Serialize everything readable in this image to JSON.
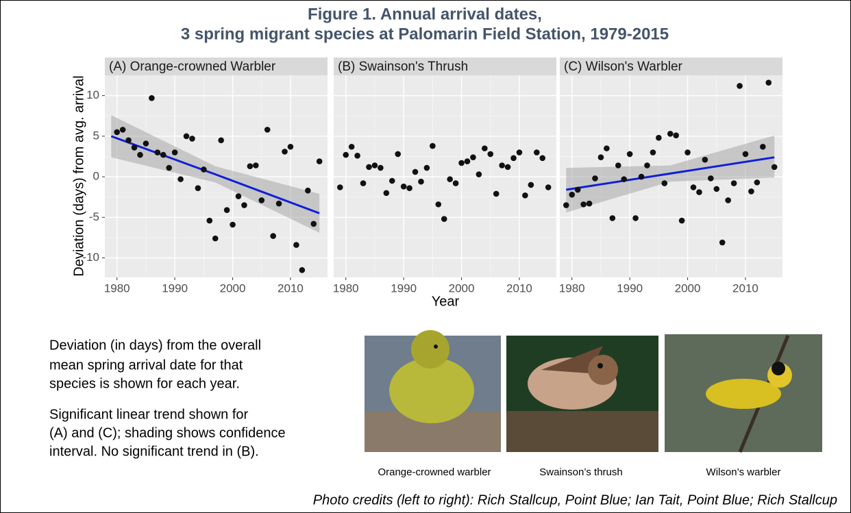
{
  "figure": {
    "title": [
      "Figure 1. Annual arrival dates,",
      "3 spring migrant species at Palomarin Field Station, 1979-2015"
    ],
    "xlabel": "Year",
    "ylabel": "Deviation (days) from avg. arrival"
  },
  "chart_data": [
    {
      "type": "scatter",
      "title": "(A) Orange-crowned Warbler",
      "color": "#111111",
      "x": [
        1980,
        1981,
        1982,
        1983,
        1984,
        1985,
        1986,
        1987,
        1988,
        1989,
        1990,
        1991,
        1992,
        1993,
        1994,
        1995,
        1996,
        1997,
        1998,
        1999,
        2000,
        2001,
        2002,
        2003,
        2004,
        2005,
        2006,
        2007,
        2008,
        2009,
        2010,
        2011,
        2012,
        2013,
        2014,
        2015
      ],
      "values": [
        5.5,
        5.8,
        4.5,
        3.6,
        2.7,
        4.1,
        9.7,
        3.0,
        2.7,
        1.1,
        3.0,
        -0.3,
        5.0,
        4.7,
        -1.4,
        0.9,
        -5.4,
        -7.6,
        4.5,
        -4.1,
        -5.9,
        -2.4,
        -3.5,
        1.3,
        1.4,
        -2.9,
        5.8,
        -7.3,
        -3.3,
        3.1,
        3.7,
        -8.4,
        -11.5,
        -1.7,
        -5.8,
        1.9
      ],
      "trend": {
        "x": [
          1979,
          1997,
          2015
        ],
        "values": [
          5.0,
          0.3,
          -4.5
        ],
        "lower": [
          2.4,
          -0.7,
          -6.9
        ],
        "upper": [
          7.6,
          1.3,
          -2.1
        ],
        "color": "#0f1fd6"
      },
      "xlim": [
        1977.9,
        2016.4
      ],
      "ylim": [
        -12.4,
        12.5
      ],
      "xticks": [
        1980,
        1990,
        2000,
        2010
      ],
      "yticks": [
        -10,
        -5,
        0,
        5,
        10
      ],
      "grid": true
    },
    {
      "type": "scatter",
      "title": "(B) Swainson's Thrush",
      "color": "#111111",
      "x": [
        1979,
        1980,
        1981,
        1982,
        1983,
        1984,
        1985,
        1986,
        1987,
        1988,
        1989,
        1990,
        1991,
        1992,
        1993,
        1994,
        1995,
        1996,
        1997,
        1998,
        1999,
        2000,
        2001,
        2002,
        2003,
        2004,
        2005,
        2006,
        2007,
        2008,
        2009,
        2010,
        2011,
        2012,
        2013,
        2014,
        2015
      ],
      "values": [
        -1.3,
        2.7,
        3.7,
        2.6,
        -0.8,
        1.2,
        1.4,
        1.1,
        -2.0,
        -0.5,
        2.8,
        -1.2,
        -1.4,
        0.6,
        -0.6,
        1.1,
        3.8,
        -3.4,
        -5.2,
        -0.3,
        -0.8,
        1.7,
        1.9,
        2.4,
        0.3,
        3.5,
        2.8,
        -2.1,
        1.4,
        1.2,
        2.3,
        3.0,
        -2.3,
        -1.0,
        3.0,
        2.3,
        -1.3
      ],
      "xlim": [
        1977.9,
        2016.4
      ],
      "ylim": [
        -12.4,
        12.5
      ],
      "xticks": [
        1980,
        1990,
        2000,
        2010
      ],
      "yticks": [
        -10,
        -5,
        0,
        5,
        10
      ],
      "grid": true
    },
    {
      "type": "scatter",
      "title": "(C) Wilson's Warbler",
      "color": "#111111",
      "x": [
        1979,
        1980,
        1981,
        1982,
        1983,
        1984,
        1985,
        1986,
        1987,
        1988,
        1989,
        1990,
        1991,
        1992,
        1993,
        1994,
        1995,
        1996,
        1997,
        1998,
        1999,
        2000,
        2001,
        2002,
        2003,
        2004,
        2005,
        2006,
        2007,
        2008,
        2009,
        2010,
        2011,
        2012,
        2013,
        2014,
        2015
      ],
      "values": [
        -3.5,
        -2.2,
        -1.6,
        -3.4,
        -3.3,
        -0.2,
        2.4,
        3.5,
        -5.1,
        1.4,
        -0.3,
        2.8,
        -5.1,
        0.0,
        1.4,
        3.0,
        4.8,
        -0.8,
        5.3,
        5.1,
        -5.4,
        3.0,
        -1.3,
        -1.9,
        2.1,
        -0.2,
        -1.5,
        -8.1,
        -2.9,
        -0.8,
        11.2,
        2.8,
        -1.8,
        -0.7,
        3.7,
        11.6,
        1.2
      ],
      "trend": {
        "x": [
          1979,
          1997,
          2015
        ],
        "values": [
          -1.6,
          0.4,
          2.4
        ],
        "lower": [
          -4.4,
          -0.6,
          -0.1
        ],
        "upper": [
          1.1,
          1.4,
          5.1
        ],
        "color": "#0f1fd6"
      },
      "xlim": [
        1977.9,
        2016.4
      ],
      "ylim": [
        -12.4,
        12.5
      ],
      "xticks": [
        1980,
        1990,
        2000,
        2010
      ],
      "yticks": [
        -10,
        -5,
        0,
        5,
        10
      ],
      "grid": true
    }
  ],
  "notes": [
    [
      "Deviation (in days) from the overall",
      "mean spring arrival date for that",
      "species is shown for each year."
    ],
    [
      "Significant linear trend shown for",
      "(A) and (C); shading shows confidence",
      "interval. No significant trend in (B)."
    ]
  ],
  "photos": [
    {
      "caption": "Orange-crowned warbler"
    },
    {
      "caption": "Swainson’s thrush"
    },
    {
      "caption": "Wilson’s warbler"
    }
  ],
  "credits": "Photo credits (left to right): Rich Stallcup, Point Blue; Ian Tait, Point Blue; Rich Stallcup"
}
